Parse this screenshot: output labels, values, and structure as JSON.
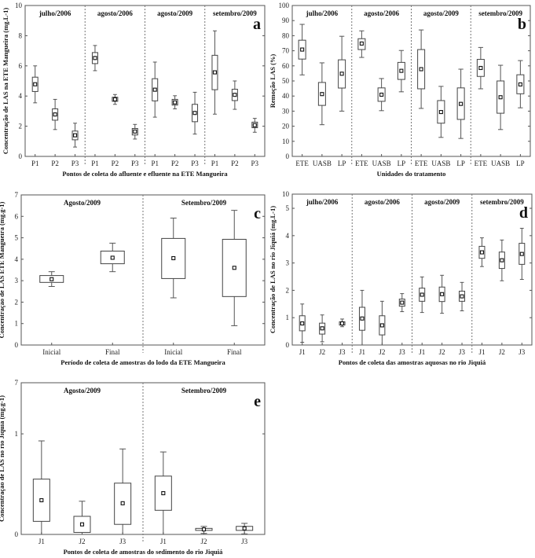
{
  "chart_data": [
    {
      "panel": "a",
      "type": "box",
      "ylabel": "Concentração de LAS na ETE Mangueira (mg.L-1)",
      "xlabel": "Pontos de coleta do afluente e efluente na ETE Mangueira",
      "ylim": [
        0,
        10
      ],
      "yticks": [
        "0",
        "2",
        "4",
        "6",
        "8",
        "10"
      ],
      "ytick_values": [
        0,
        2,
        4,
        6,
        8,
        10
      ],
      "grid": false,
      "groups": [
        {
          "label": "julho/2006",
          "boxes": [
            {
              "x": "P1",
              "min": 3.55,
              "q1": 4.3,
              "mean": 4.78,
              "q3": 5.25,
              "max": 6.0
            },
            {
              "x": "P2",
              "min": 1.78,
              "q1": 2.4,
              "mean": 2.78,
              "q3": 3.15,
              "max": 3.78
            },
            {
              "x": "P3",
              "min": 0.62,
              "q1": 1.1,
              "mean": 1.4,
              "q3": 1.68,
              "max": 2.2
            }
          ]
        },
        {
          "label": "agosto/2006",
          "boxes": [
            {
              "x": "P1",
              "min": 5.68,
              "q1": 6.15,
              "mean": 6.52,
              "q3": 6.88,
              "max": 7.35
            },
            {
              "x": "P2",
              "min": 3.45,
              "q1": 3.65,
              "mean": 3.78,
              "q3": 3.92,
              "max": 4.1
            },
            {
              "x": "P3",
              "min": 1.15,
              "q1": 1.42,
              "mean": 1.65,
              "q3": 1.85,
              "max": 2.12
            }
          ]
        },
        {
          "label": "agosto/2009",
          "boxes": [
            {
              "x": "P1",
              "min": 2.6,
              "q1": 3.68,
              "mean": 4.42,
              "q3": 5.15,
              "max": 6.25
            },
            {
              "x": "P2",
              "min": 3.15,
              "q1": 3.4,
              "mean": 3.58,
              "q3": 3.78,
              "max": 4.02
            },
            {
              "x": "P3",
              "min": 1.48,
              "q1": 2.3,
              "mean": 2.88,
              "q3": 3.45,
              "max": 4.25
            }
          ]
        },
        {
          "label": "setembro/2009",
          "boxes": [
            {
              "x": "P1",
              "min": 2.8,
              "q1": 4.42,
              "mean": 5.57,
              "q3": 6.7,
              "max": 8.32
            },
            {
              "x": "P2",
              "min": 3.12,
              "q1": 3.7,
              "mean": 4.08,
              "q3": 4.45,
              "max": 5.0
            },
            {
              "x": "P3",
              "min": 1.6,
              "q1": 1.9,
              "mean": 2.07,
              "q3": 2.27,
              "max": 2.52
            }
          ]
        }
      ]
    },
    {
      "panel": "b",
      "type": "box",
      "ylabel": "Remoção LAS (%)",
      "xlabel": "Unidades do tratamento",
      "ylim": [
        0,
        100
      ],
      "yticks": [
        "0",
        "10",
        "20",
        "30",
        "40",
        "50",
        "60",
        "70",
        "80",
        "90",
        "100"
      ],
      "ytick_values": [
        0,
        10,
        20,
        30,
        40,
        50,
        60,
        70,
        80,
        90,
        100
      ],
      "grid": false,
      "groups": [
        {
          "label": "julho/2006",
          "boxes": [
            {
              "x": "ETE",
              "min": 54,
              "q1": 64.5,
              "mean": 70.8,
              "q3": 77,
              "max": 87.5
            },
            {
              "x": "UASB",
              "min": 21,
              "q1": 33.8,
              "mean": 41.3,
              "q3": 49,
              "max": 62
            },
            {
              "x": "LP",
              "min": 30,
              "q1": 45.3,
              "mean": 54.8,
              "q3": 64,
              "max": 79.6
            }
          ]
        },
        {
          "label": "agosto/2006",
          "boxes": [
            {
              "x": "ETE",
              "min": 65.6,
              "q1": 70.8,
              "mean": 74.8,
              "q3": 78,
              "max": 83.2
            },
            {
              "x": "UASB",
              "min": 30.3,
              "q1": 36.5,
              "mean": 40.9,
              "q3": 45.4,
              "max": 51.6
            },
            {
              "x": "LP",
              "min": 42.8,
              "q1": 51,
              "mean": 56.7,
              "q3": 62.3,
              "max": 70.2
            }
          ]
        },
        {
          "label": "agosto/2009",
          "boxes": [
            {
              "x": "ETE",
              "min": 31.8,
              "q1": 44.8,
              "mean": 57.8,
              "q3": 70.8,
              "max": 83.8
            },
            {
              "x": "UASB",
              "min": 12.6,
              "q1": 22,
              "mean": 29.4,
              "q3": 37,
              "max": 46.4
            },
            {
              "x": "LP",
              "min": 11.9,
              "q1": 24.5,
              "mean": 34.8,
              "q3": 45.4,
              "max": 57.8
            }
          ]
        },
        {
          "label": "setembro/2009",
          "boxes": [
            {
              "x": "ETE",
              "min": 44.8,
              "q1": 53,
              "mean": 58.6,
              "q3": 64.3,
              "max": 72.2
            },
            {
              "x": "UASB",
              "min": 17.8,
              "q1": 28.6,
              "mean": 39.2,
              "q3": 50,
              "max": 60.4
            },
            {
              "x": "LP",
              "min": 32.2,
              "q1": 41.5,
              "mean": 47.7,
              "q3": 54.1,
              "max": 63.5
            }
          ]
        }
      ]
    },
    {
      "panel": "c",
      "type": "box",
      "ylabel": "Concentração de LAS ETE Mangueira (mg.g-1)",
      "xlabel": "Período de coleta de amostras do lodo da ETE Mangueira",
      "ylim": [
        0,
        7
      ],
      "yticks": [
        "0",
        "1",
        "2",
        "3",
        "4",
        "5",
        "6",
        "7"
      ],
      "ytick_values": [
        0,
        1,
        2,
        3,
        4,
        5,
        6,
        7
      ],
      "grid": false,
      "groups": [
        {
          "label": "Agosto/2009",
          "boxes": [
            {
              "x": "Inicial",
              "min": 2.73,
              "q1": 2.92,
              "mean": 3.07,
              "q3": 3.24,
              "max": 3.42
            },
            {
              "x": "Final",
              "min": 3.42,
              "q1": 3.79,
              "mean": 4.07,
              "q3": 4.38,
              "max": 4.75
            }
          ]
        },
        {
          "label": "Setembro/2009",
          "boxes": [
            {
              "x": "Inicial",
              "min": 2.2,
              "q1": 3.1,
              "mean": 4.05,
              "q3": 4.97,
              "max": 5.92
            },
            {
              "x": "Final",
              "min": 0.9,
              "q1": 2.26,
              "mean": 3.6,
              "q3": 4.93,
              "max": 6.28
            }
          ]
        }
      ]
    },
    {
      "panel": "d",
      "type": "box",
      "ylabel": "Concentração de LAS no rio Jiquiá (mg.L-1)",
      "xlabel": "Pontos de coleta das amostras aquosas no rio Jiquiá",
      "ylim": [
        0,
        10
      ],
      "axis_break_at": 5,
      "yticks": [
        "0",
        "1",
        "2",
        "3",
        "4",
        "5",
        "10"
      ],
      "ytick_values": [
        0,
        1,
        2,
        3,
        4,
        5,
        10
      ],
      "grid": false,
      "groups": [
        {
          "label": "julho/2006",
          "boxes": [
            {
              "x": "J1",
              "min": 0.1,
              "q1": 0.52,
              "mean": 0.79,
              "q3": 1.07,
              "max": 1.5
            },
            {
              "x": "J2",
              "min": 0.12,
              "q1": 0.4,
              "mean": 0.61,
              "q3": 0.8,
              "max": 1.1
            },
            {
              "x": "J3",
              "min": 0.67,
              "q1": 0.73,
              "mean": 0.79,
              "q3": 0.85,
              "max": 0.95
            }
          ]
        },
        {
          "label": "agosto/2006",
          "boxes": [
            {
              "x": "J1",
              "min": 0,
              "q1": 0.54,
              "mean": 0.97,
              "q3": 1.38,
              "max": 2.0
            },
            {
              "x": "J2",
              "min": 0,
              "q1": 0.37,
              "mean": 0.72,
              "q3": 1.07,
              "max": 1.6
            },
            {
              "x": "J3",
              "min": 1.22,
              "q1": 1.42,
              "mean": 1.55,
              "q3": 1.68,
              "max": 1.88
            }
          ]
        },
        {
          "label": "agosto/2009",
          "boxes": [
            {
              "x": "J1",
              "min": 1.19,
              "q1": 1.6,
              "mean": 1.84,
              "q3": 2.08,
              "max": 2.49
            },
            {
              "x": "J2",
              "min": 1.16,
              "q1": 1.59,
              "mean": 1.86,
              "q3": 2.12,
              "max": 2.55
            },
            {
              "x": "J3",
              "min": 1.25,
              "q1": 1.6,
              "mean": 1.78,
              "q3": 1.97,
              "max": 2.29
            }
          ]
        },
        {
          "label": "setembro/2009",
          "boxes": [
            {
              "x": "J1",
              "min": 2.87,
              "q1": 3.17,
              "mean": 3.39,
              "q3": 3.61,
              "max": 3.92
            },
            {
              "x": "J2",
              "min": 2.35,
              "q1": 2.8,
              "mean": 3.1,
              "q3": 3.4,
              "max": 3.84
            },
            {
              "x": "J3",
              "min": 2.4,
              "q1": 2.95,
              "mean": 3.33,
              "q3": 3.72,
              "max": 4.27
            }
          ]
        }
      ]
    },
    {
      "panel": "e",
      "type": "box",
      "ylabel": "Concentração de LAS no rio Jiquiá (mg.g-1)",
      "xlabel": "Pontos de coleta de amostras do sedimento do rio Jiquiá",
      "ylim": [
        0,
        7
      ],
      "axis_break_at": 1,
      "yticks": [
        "0",
        "1",
        "7"
      ],
      "ytick_values": [
        0,
        1,
        7
      ],
      "grid": false,
      "groups": [
        {
          "label": "Agosto/2009",
          "boxes": [
            {
              "x": "J1",
              "min": 0,
              "q1": 0.13,
              "mean": 0.34,
              "q3": 0.55,
              "max": 0.93
            },
            {
              "x": "J2",
              "min": 0,
              "q1": 0.02,
              "mean": 0.1,
              "q3": 0.18,
              "max": 0.33
            },
            {
              "x": "J3",
              "min": 0,
              "q1": 0.1,
              "mean": 0.31,
              "q3": 0.51,
              "max": 0.85
            }
          ]
        },
        {
          "label": "Setembro/2009",
          "boxes": [
            {
              "x": "J1",
              "min": 0,
              "q1": 0.24,
              "mean": 0.41,
              "q3": 0.58,
              "max": 0.82
            },
            {
              "x": "J2",
              "min": 0.01,
              "q1": 0.04,
              "mean": 0.05,
              "q3": 0.06,
              "max": 0.08
            },
            {
              "x": "J3",
              "min": 0.005,
              "q1": 0.04,
              "mean": 0.06,
              "q3": 0.08,
              "max": 0.11
            }
          ]
        }
      ]
    }
  ]
}
